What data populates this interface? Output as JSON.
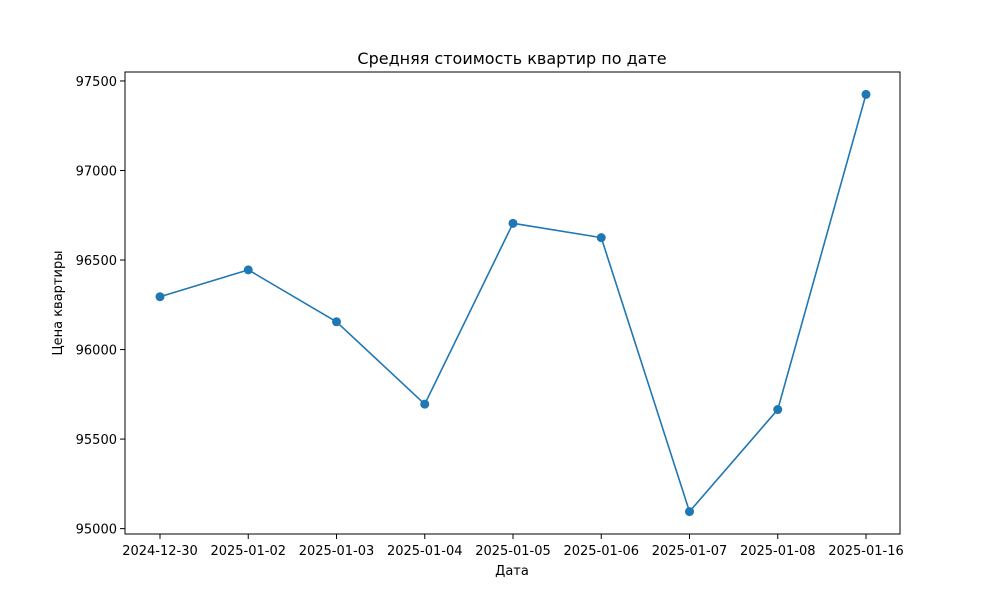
{
  "chart_data": {
    "type": "line",
    "title": "Средняя стоимость квартир по дате",
    "xlabel": "Дата",
    "ylabel": "Цена квартиры",
    "categories": [
      "2024-12-30",
      "2025-01-02",
      "2025-01-03",
      "2025-01-04",
      "2025-01-05",
      "2025-01-06",
      "2025-01-07",
      "2025-01-08",
      "2025-01-16"
    ],
    "series": [
      {
        "values": [
          96295,
          96445,
          96155,
          95695,
          96705,
          96625,
          95095,
          95665,
          97425
        ],
        "color": "#1f77b4",
        "marker": "circle"
      }
    ],
    "ylim": [
      94970,
      97550
    ],
    "yticks": [
      95000,
      95500,
      96000,
      96500,
      97000,
      97500
    ],
    "grid": false,
    "legend": "none"
  }
}
